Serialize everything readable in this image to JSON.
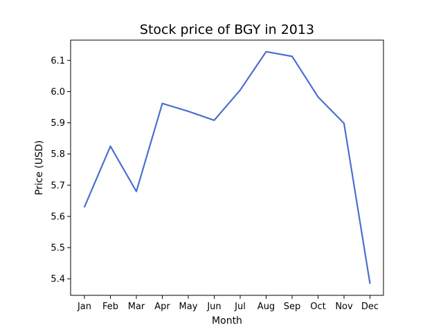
{
  "chart_data": {
    "type": "line",
    "title": "Stock price of BGY in 2013",
    "xlabel": "Month",
    "ylabel": "Price (USD)",
    "categories": [
      "Jan",
      "Feb",
      "Mar",
      "Apr",
      "May",
      "Jun",
      "Jul",
      "Aug",
      "Sep",
      "Oct",
      "Nov",
      "Dec"
    ],
    "series": [
      {
        "values": [
          5.63,
          5.825,
          5.68,
          5.962,
          5.937,
          5.908,
          6.005,
          6.128,
          6.113,
          5.983,
          5.898,
          5.385
        ],
        "color": "#4a6fd0"
      }
    ],
    "yticks": [
      "5.4",
      "5.5",
      "5.6",
      "5.7",
      "5.8",
      "5.9",
      "6.0",
      "6.1"
    ],
    "ylim": [
      5.347,
      6.165
    ],
    "grid": false,
    "legend": "none"
  }
}
